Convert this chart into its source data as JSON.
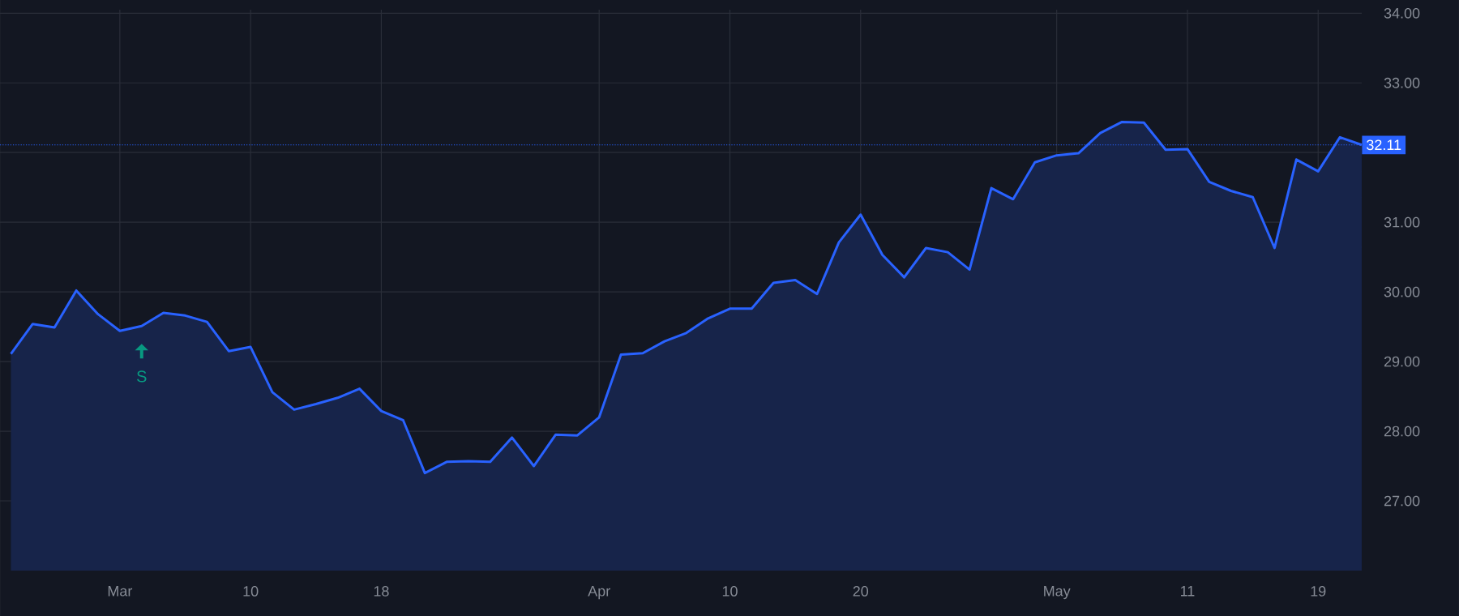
{
  "chart_data": {
    "type": "area",
    "categories": [
      null,
      null,
      null,
      null,
      null,
      "Mar",
      null,
      null,
      null,
      null,
      null,
      "10",
      null,
      null,
      null,
      null,
      null,
      "18",
      null,
      null,
      null,
      null,
      null,
      null,
      null,
      null,
      null,
      "Apr",
      null,
      null,
      null,
      null,
      null,
      "10",
      null,
      null,
      null,
      null,
      null,
      "20",
      null,
      null,
      null,
      null,
      null,
      null,
      null,
      null,
      "May",
      null,
      null,
      null,
      null,
      null,
      "11",
      null,
      null,
      null,
      null,
      null,
      "19",
      null,
      null
    ],
    "series": [
      {
        "color": "#2962ff",
        "values": [
          29.11,
          29.54,
          29.49,
          30.02,
          29.68,
          29.44,
          29.51,
          29.7,
          29.66,
          29.57,
          29.15,
          29.21,
          28.56,
          28.31,
          28.39,
          28.48,
          28.61,
          28.29,
          28.16,
          27.4,
          27.56,
          27.57,
          27.56,
          27.91,
          27.5,
          27.95,
          27.94,
          28.2,
          29.1,
          29.12,
          29.29,
          29.41,
          29.62,
          29.76,
          29.76,
          30.13,
          30.17,
          29.97,
          30.71,
          31.11,
          30.53,
          30.21,
          30.63,
          30.57,
          30.32,
          31.49,
          31.33,
          31.86,
          31.96,
          31.99,
          32.28,
          32.44,
          32.43,
          32.04,
          32.05,
          31.58,
          31.45,
          31.36,
          30.63,
          31.9,
          31.73,
          32.22,
          32.11
        ]
      }
    ],
    "ylim": [
      26.0,
      34.05
    ],
    "yticks": [
      {
        "value": 27,
        "label": "27.00"
      },
      {
        "value": 28,
        "label": "28.00"
      },
      {
        "value": 29,
        "label": "29.00"
      },
      {
        "value": 30,
        "label": "30.00"
      },
      {
        "value": 31,
        "label": "31.00"
      },
      {
        "value": 32,
        "label": null
      },
      {
        "value": 33,
        "label": "33.00"
      },
      {
        "value": 34,
        "label": "34.00"
      }
    ],
    "ref_lines": [
      {
        "axis": "y",
        "value": 32.11,
        "label": "32.11",
        "color": "#2962ff",
        "line_style": "dotted"
      }
    ],
    "annotations": [
      {
        "text": "S",
        "y": 29.51
      }
    ],
    "grid": true,
    "marker": "none",
    "line_style": "solid"
  }
}
